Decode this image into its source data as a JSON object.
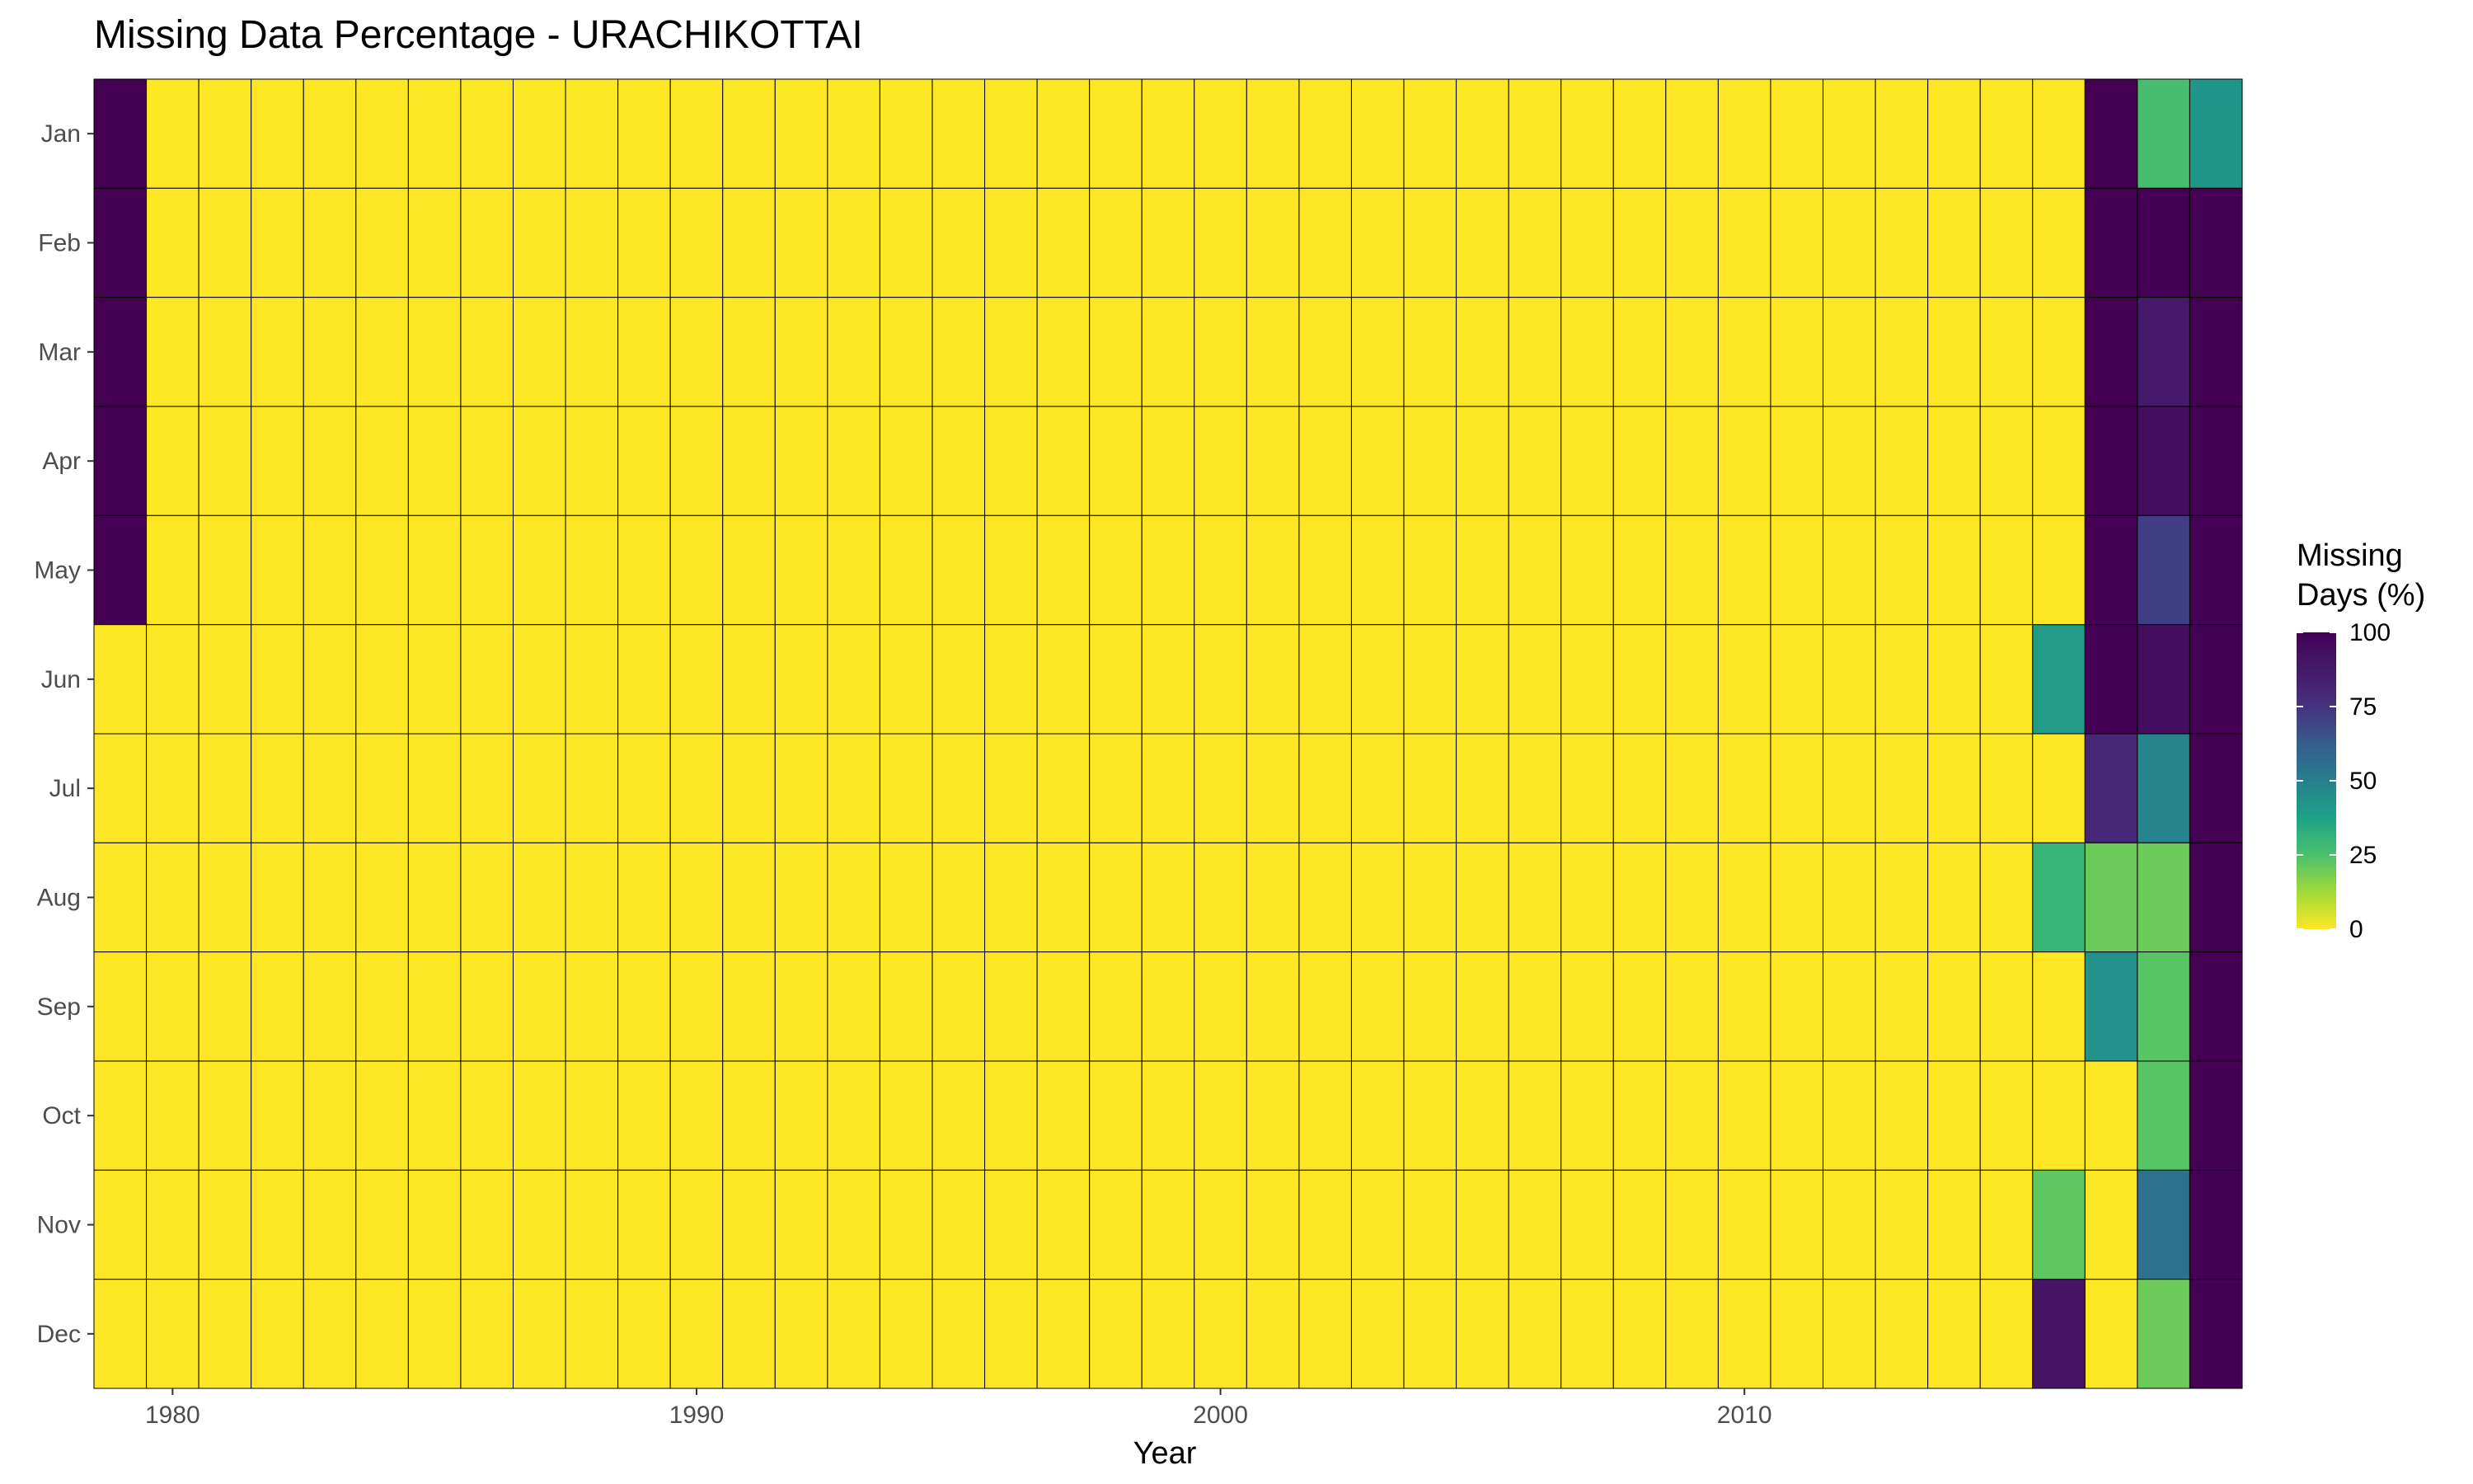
{
  "chart_data": {
    "type": "heatmap",
    "title": "Missing Data Percentage - URACHIKOTTAI",
    "xlabel": "Year",
    "ylabel": "",
    "years": [
      1979,
      1980,
      1981,
      1982,
      1983,
      1984,
      1985,
      1986,
      1987,
      1988,
      1989,
      1990,
      1991,
      1992,
      1993,
      1994,
      1995,
      1996,
      1997,
      1998,
      1999,
      2000,
      2001,
      2002,
      2003,
      2004,
      2005,
      2006,
      2007,
      2008,
      2009,
      2010,
      2011,
      2012,
      2013,
      2014,
      2015,
      2016,
      2017,
      2018,
      2019
    ],
    "months": [
      "Jan",
      "Feb",
      "Mar",
      "Apr",
      "May",
      "Jun",
      "Jul",
      "Aug",
      "Sep",
      "Oct",
      "Nov",
      "Dec"
    ],
    "x_ticks": [
      1980,
      1990,
      2000,
      2010
    ],
    "x_tick_labels": [
      "1980",
      "1990",
      "2000",
      "2010"
    ],
    "default_value": 0,
    "nonzero_cells": [
      {
        "year": 1979,
        "month": "Jan",
        "value": 100
      },
      {
        "year": 1979,
        "month": "Feb",
        "value": 100
      },
      {
        "year": 1979,
        "month": "Mar",
        "value": 100
      },
      {
        "year": 1979,
        "month": "Apr",
        "value": 100
      },
      {
        "year": 1979,
        "month": "May",
        "value": 100
      },
      {
        "year": 2016,
        "month": "Jun",
        "value": 40
      },
      {
        "year": 2016,
        "month": "Aug",
        "value": 30
      },
      {
        "year": 2016,
        "month": "Nov",
        "value": 22
      },
      {
        "year": 2016,
        "month": "Dec",
        "value": 90
      },
      {
        "year": 2017,
        "month": "Jan",
        "value": 100
      },
      {
        "year": 2017,
        "month": "Feb",
        "value": 100
      },
      {
        "year": 2017,
        "month": "Mar",
        "value": 100
      },
      {
        "year": 2017,
        "month": "Apr",
        "value": 100
      },
      {
        "year": 2017,
        "month": "May",
        "value": 100
      },
      {
        "year": 2017,
        "month": "Jun",
        "value": 100
      },
      {
        "year": 2017,
        "month": "Jul",
        "value": 80
      },
      {
        "year": 2017,
        "month": "Aug",
        "value": 20
      },
      {
        "year": 2017,
        "month": "Sep",
        "value": 43
      },
      {
        "year": 2018,
        "month": "Jan",
        "value": 26
      },
      {
        "year": 2018,
        "month": "Feb",
        "value": 100
      },
      {
        "year": 2018,
        "month": "Mar",
        "value": 87
      },
      {
        "year": 2018,
        "month": "Apr",
        "value": 94
      },
      {
        "year": 2018,
        "month": "May",
        "value": 71
      },
      {
        "year": 2018,
        "month": "Jun",
        "value": 94
      },
      {
        "year": 2018,
        "month": "Jul",
        "value": 48
      },
      {
        "year": 2018,
        "month": "Aug",
        "value": 20
      },
      {
        "year": 2018,
        "month": "Sep",
        "value": 23
      },
      {
        "year": 2018,
        "month": "Oct",
        "value": 23
      },
      {
        "year": 2018,
        "month": "Nov",
        "value": 55
      },
      {
        "year": 2018,
        "month": "Dec",
        "value": 20
      },
      {
        "year": 2019,
        "month": "Jan",
        "value": 42
      },
      {
        "year": 2019,
        "month": "Feb",
        "value": 100
      },
      {
        "year": 2019,
        "month": "Mar",
        "value": 100
      },
      {
        "year": 2019,
        "month": "Apr",
        "value": 100
      },
      {
        "year": 2019,
        "month": "May",
        "value": 100
      },
      {
        "year": 2019,
        "month": "Jun",
        "value": 100
      },
      {
        "year": 2019,
        "month": "Jul",
        "value": 100
      },
      {
        "year": 2019,
        "month": "Aug",
        "value": 100
      },
      {
        "year": 2019,
        "month": "Sep",
        "value": 100
      },
      {
        "year": 2019,
        "month": "Oct",
        "value": 100
      },
      {
        "year": 2019,
        "month": "Nov",
        "value": 100
      },
      {
        "year": 2019,
        "month": "Dec",
        "value": 100
      }
    ],
    "color_scale": {
      "name": "viridis (reversed)",
      "range": [
        0,
        100
      ],
      "stops": [
        {
          "value": 0,
          "color": "#FDE725"
        },
        {
          "value": 12.5,
          "color": "#A0DA39"
        },
        {
          "value": 25,
          "color": "#4AC16D"
        },
        {
          "value": 37.5,
          "color": "#1FA187"
        },
        {
          "value": 50,
          "color": "#277F8E"
        },
        {
          "value": 62.5,
          "color": "#365C8D"
        },
        {
          "value": 75,
          "color": "#46327E"
        },
        {
          "value": 100,
          "color": "#440154"
        }
      ]
    },
    "legend": {
      "title_line1": "Missing",
      "title_line2": "Days (%)",
      "ticks": [
        100,
        75,
        50,
        25,
        0
      ],
      "tick_labels": [
        "100",
        "75",
        "50",
        "25",
        "0"
      ],
      "placement": "right"
    },
    "grid": false
  }
}
